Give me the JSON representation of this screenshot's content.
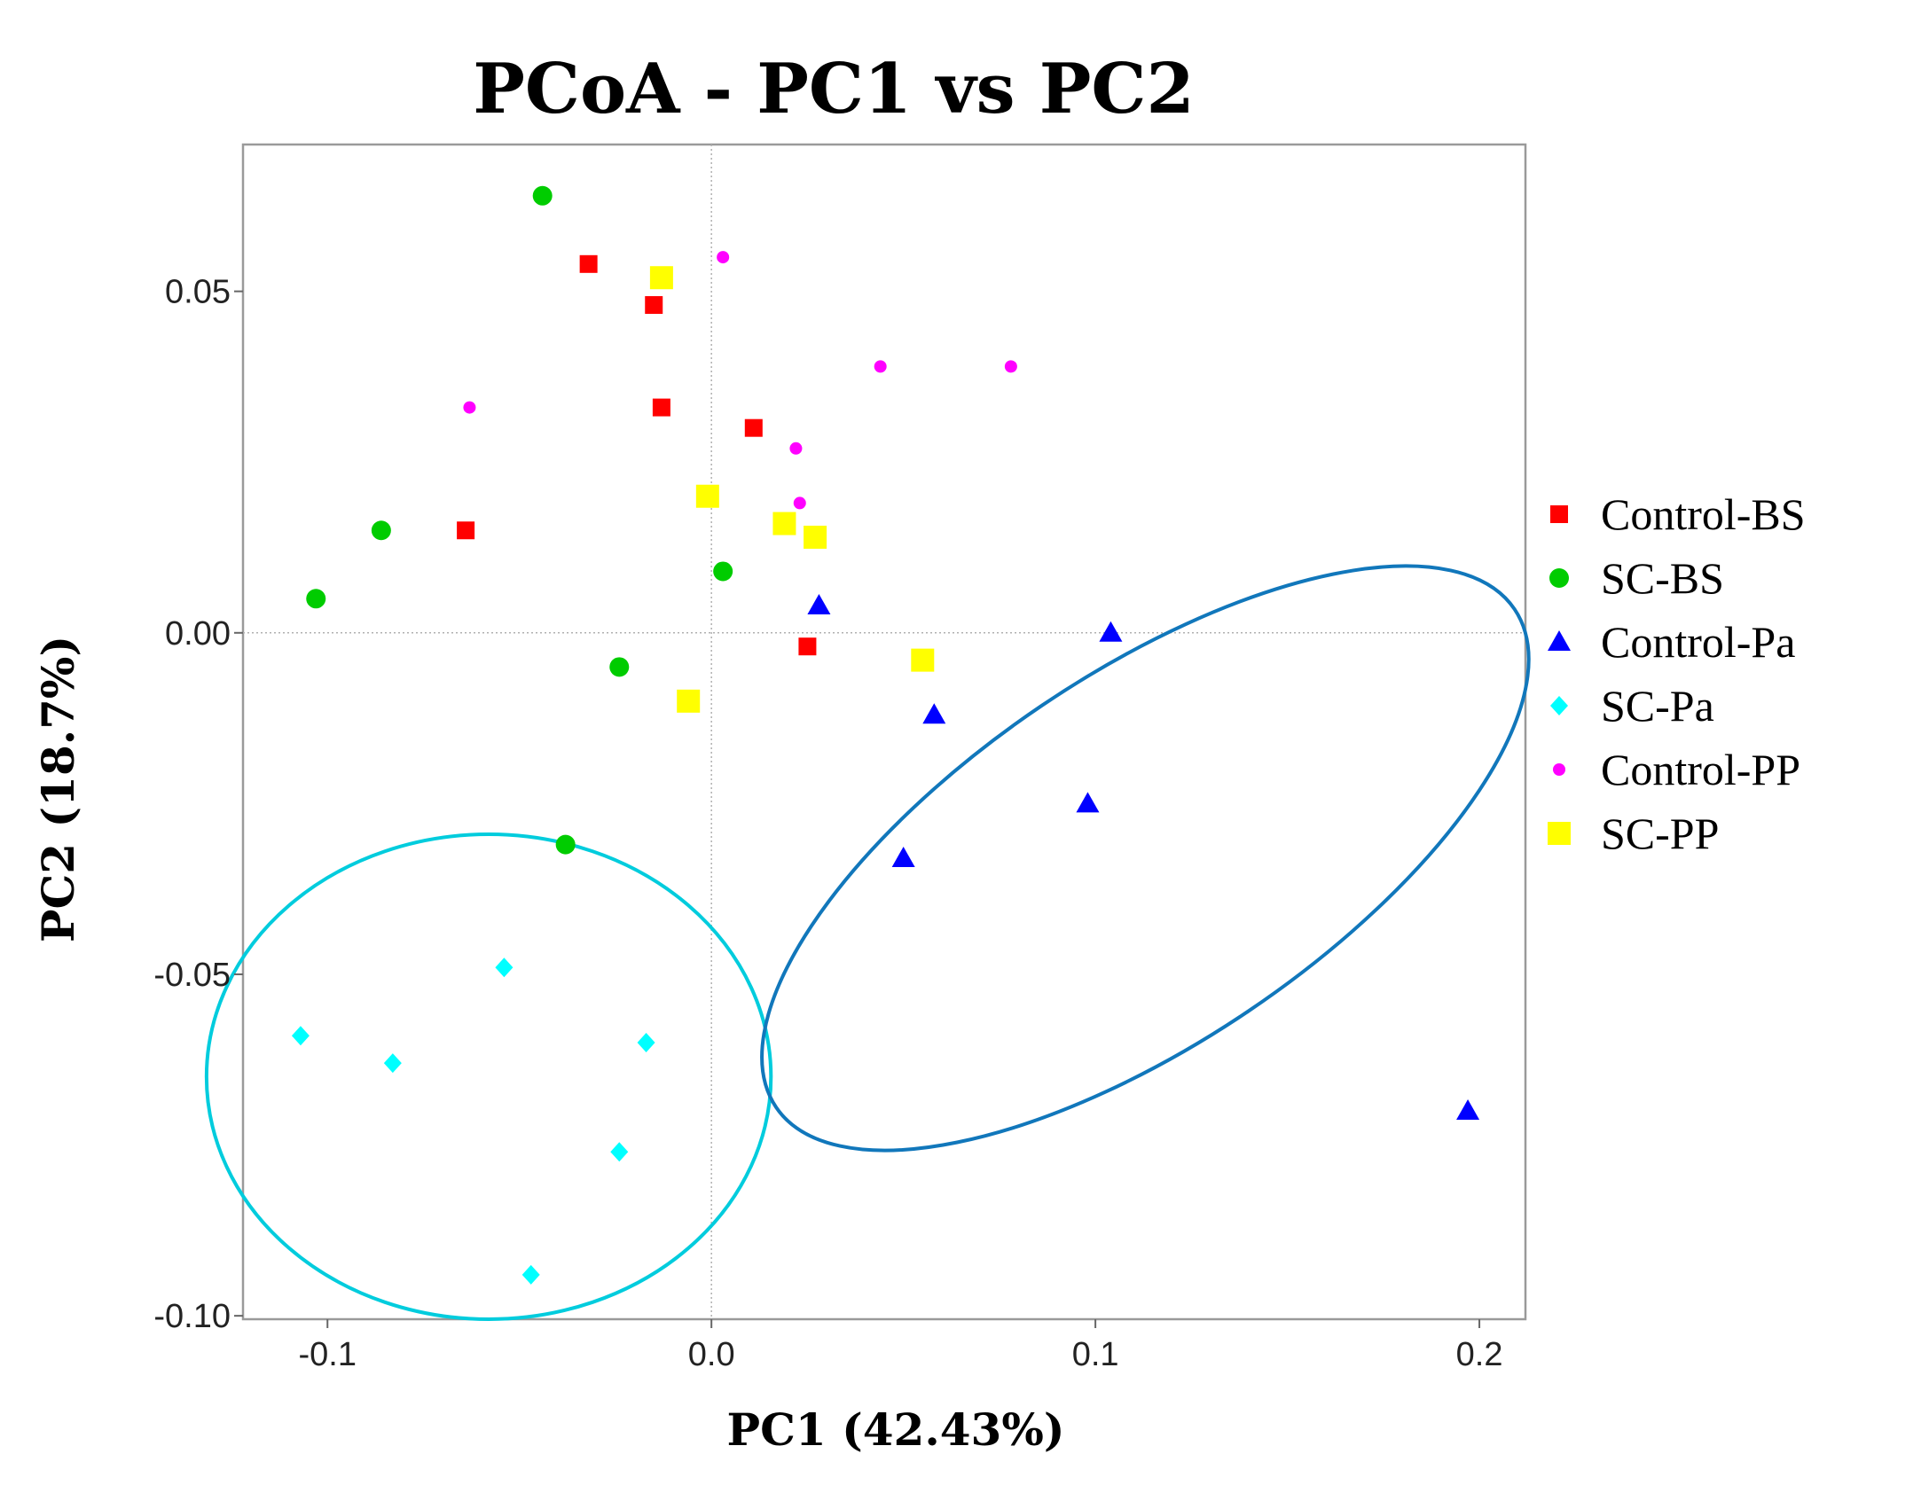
{
  "chart_data": {
    "type": "scatter",
    "title": "PCoA - PC1 vs PC2",
    "xlabel": "PC1 (42.43%)",
    "ylabel": "PC2 (18.7%)",
    "xlim": [
      -0.122,
      0.212
    ],
    "ylim": [
      -0.1005,
      0.0715
    ],
    "xticks": [
      -0.1,
      0.0,
      0.1,
      0.2
    ],
    "xtick_labels": [
      "-0.1",
      "0.0",
      "0.1",
      "0.2"
    ],
    "yticks": [
      0.05,
      0.0,
      -0.05,
      -0.1
    ],
    "ytick_labels": [
      "0.05",
      "0.00",
      "-0.05",
      "-0.10"
    ],
    "grid": "zero-lines",
    "legend_position": "right",
    "series": [
      {
        "name": "Control-BS",
        "marker": "square-small",
        "color": "#ff0000",
        "points": [
          [
            -0.032,
            0.054
          ],
          [
            -0.015,
            0.048
          ],
          [
            -0.013,
            0.033
          ],
          [
            0.011,
            0.03
          ],
          [
            -0.064,
            0.015
          ],
          [
            0.025,
            -0.002
          ]
        ]
      },
      {
        "name": "SC-BS",
        "marker": "circle",
        "color": "#00cc00",
        "points": [
          [
            -0.044,
            0.064
          ],
          [
            -0.086,
            0.015
          ],
          [
            -0.103,
            0.005
          ],
          [
            0.003,
            0.009
          ],
          [
            -0.024,
            -0.005
          ],
          [
            -0.038,
            -0.031
          ]
        ]
      },
      {
        "name": "Control-Pa",
        "marker": "triangle",
        "color": "#0000ff",
        "points": [
          [
            0.028,
            0.004
          ],
          [
            0.104,
            0.0
          ],
          [
            0.058,
            -0.012
          ],
          [
            0.098,
            -0.025
          ],
          [
            0.05,
            -0.033
          ],
          [
            0.197,
            -0.07
          ]
        ]
      },
      {
        "name": "SC-Pa",
        "marker": "diamond",
        "color": "#00ffff",
        "points": [
          [
            -0.054,
            -0.049
          ],
          [
            -0.107,
            -0.059
          ],
          [
            -0.083,
            -0.063
          ],
          [
            -0.017,
            -0.06
          ],
          [
            -0.024,
            -0.076
          ],
          [
            -0.047,
            -0.094
          ]
        ]
      },
      {
        "name": "Control-PP",
        "marker": "circle-small",
        "color": "#ff00ff",
        "points": [
          [
            0.003,
            0.055
          ],
          [
            0.044,
            0.039
          ],
          [
            0.078,
            0.039
          ],
          [
            -0.063,
            0.033
          ],
          [
            0.022,
            0.027
          ],
          [
            0.023,
            0.019
          ]
        ]
      },
      {
        "name": "SC-PP",
        "marker": "square",
        "color": "#ffff00",
        "points": [
          [
            -0.013,
            0.052
          ],
          [
            -0.001,
            0.02
          ],
          [
            0.019,
            0.016
          ],
          [
            0.027,
            0.014
          ],
          [
            0.055,
            -0.004
          ],
          [
            -0.006,
            -0.01
          ]
        ]
      }
    ],
    "ellipses": [
      {
        "group": "SC-Pa",
        "color": "#00ccdd",
        "center": [
          -0.058,
          -0.065
        ],
        "rx": 0.0735,
        "ry": 0.0355,
        "angle": 0
      },
      {
        "group": "Control-Pa",
        "color": "#1177bb",
        "center": [
          0.113,
          -0.033
        ],
        "rx": 0.116,
        "ry": 0.027,
        "angle": -34
      }
    ]
  }
}
